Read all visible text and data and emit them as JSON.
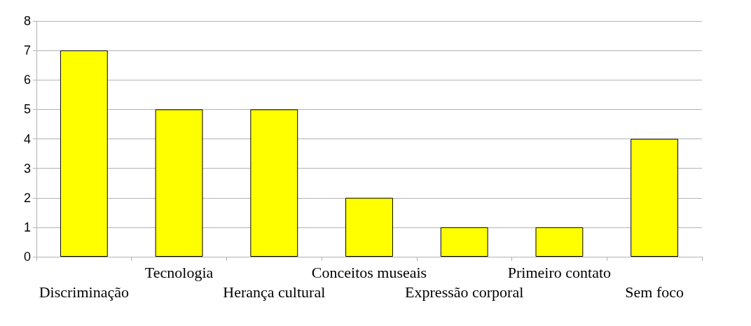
{
  "chart_data": {
    "type": "bar",
    "categories": [
      "Discriminação",
      "Tecnologia",
      "Herança cultural",
      "Conceitos museais",
      "Expressão corporal",
      "Primeiro contato",
      "Sem foco"
    ],
    "values": [
      7,
      5,
      5,
      2,
      1,
      1,
      4
    ],
    "color": "#ffff00",
    "ylim": [
      0,
      8
    ],
    "yticks": [
      0,
      1,
      2,
      3,
      4,
      5,
      6,
      7,
      8
    ],
    "grid": "y"
  }
}
